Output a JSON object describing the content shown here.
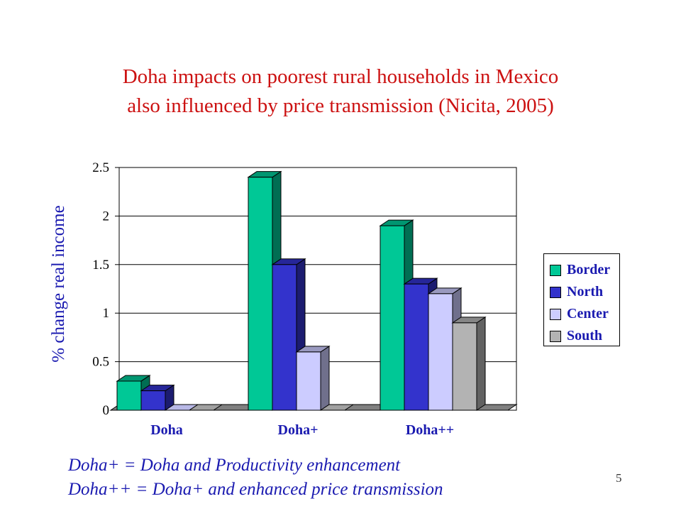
{
  "title_line1": "Doha impacts on poorest rural households in Mexico",
  "title_line2": "also influenced by price transmission (Nicita, 2005)",
  "notes": [
    "Doha+ = Doha and Productivity enhancement",
    "Doha++ = Doha+ and enhanced price transmission"
  ],
  "slide_number": "5",
  "chart_data": {
    "type": "bar",
    "ylabel": "% change real income",
    "xlabel": "",
    "categories": [
      "Doha",
      "Doha+",
      "Doha++"
    ],
    "ylim": [
      0,
      2.5
    ],
    "yticks": [
      "0",
      "0.5",
      "1",
      "1.5",
      "2",
      "2.5"
    ],
    "grid": true,
    "legend_position": "right",
    "series": [
      {
        "name": "Border",
        "values": [
          0.3,
          2.4,
          1.9
        ],
        "color": "#00c896"
      },
      {
        "name": "North",
        "values": [
          0.2,
          1.5,
          1.3
        ],
        "color": "#3333cc"
      },
      {
        "name": "Center",
        "values": [
          0.0,
          0.6,
          1.2
        ],
        "color": "#ccccff"
      },
      {
        "name": "South",
        "values": [
          0.0,
          0.0,
          0.9
        ],
        "color": "#b3b3b3"
      }
    ]
  }
}
